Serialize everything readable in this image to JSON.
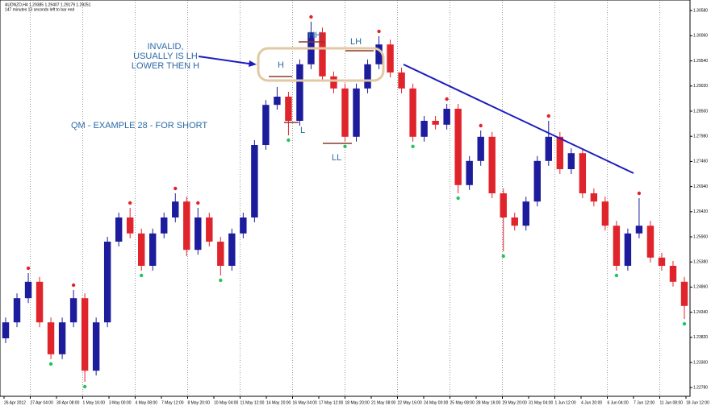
{
  "chart_data": {
    "type": "candlestick",
    "symbol_info": "AUDNZD,H4  1.29385 1.29407 1.29179 1.29251",
    "timer_info": "147 minutes 13 seconds left to bar end",
    "title": "QM - EXAMPLE 28 - FOR SHORT",
    "annotations": {
      "note": "INVALID,\nUSUALLY IS LH\nLOWER THEN H",
      "h": "H",
      "hh": "HH",
      "lh": "LH",
      "l": "L",
      "ll": "LL"
    },
    "up_color": "#1c1c9c",
    "down_color": "#e0242b",
    "open": [
      1.238,
      1.2413,
      1.2463,
      1.2497,
      1.2413,
      1.2347,
      1.2413,
      1.2463,
      1.2313,
      1.2413,
      1.258,
      1.263,
      1.2597,
      1.253,
      1.2597,
      1.263,
      1.2663,
      1.2563,
      1.263,
      1.258,
      1.253,
      1.2597,
      1.263,
      1.278,
      1.2863,
      1.288,
      1.283,
      1.2947,
      1.3013,
      1.2922,
      1.2897,
      1.2797,
      1.2897,
      1.2947,
      1.2988,
      1.293,
      1.2897,
      1.2797,
      1.283,
      1.2822,
      1.2855,
      1.2697,
      1.2747,
      1.2797,
      1.268,
      1.263,
      1.2613,
      1.2663,
      1.2747,
      1.2797,
      1.273,
      1.2763,
      1.268,
      1.2663,
      1.2613,
      1.253,
      1.2597,
      1.2613,
      1.2547,
      1.253,
      1.2497
    ],
    "high": [
      1.2423,
      1.2473,
      1.2515,
      1.2507,
      1.2423,
      1.2423,
      1.248,
      1.2473,
      1.2423,
      1.259,
      1.264,
      1.265,
      1.2607,
      1.2607,
      1.264,
      1.268,
      1.2673,
      1.265,
      1.264,
      1.259,
      1.2607,
      1.264,
      1.279,
      1.2873,
      1.29,
      1.289,
      1.2957,
      1.3035,
      1.3023,
      1.2932,
      1.2907,
      1.2907,
      1.2957,
      1.3005,
      1.2998,
      1.294,
      1.2907,
      1.284,
      1.284,
      1.2865,
      1.2865,
      1.2757,
      1.281,
      1.2807,
      1.269,
      1.264,
      1.2673,
      1.2757,
      1.283,
      1.2807,
      1.2773,
      1.2773,
      1.269,
      1.2673,
      1.2623,
      1.2607,
      1.267,
      1.2623,
      1.2557,
      1.254,
      1.2507
    ],
    "low": [
      1.237,
      1.2403,
      1.2453,
      1.2403,
      1.2337,
      1.2337,
      1.2403,
      1.229,
      1.2303,
      1.2403,
      1.257,
      1.2587,
      1.252,
      1.252,
      1.2587,
      1.262,
      1.255,
      1.2553,
      1.257,
      1.251,
      1.252,
      1.2587,
      1.262,
      1.277,
      1.2853,
      1.28,
      1.282,
      1.2937,
      1.2912,
      1.2887,
      1.2787,
      1.2787,
      1.2887,
      1.2937,
      1.292,
      1.2887,
      1.2787,
      1.2787,
      1.2812,
      1.2812,
      1.268,
      1.2687,
      1.2737,
      1.267,
      1.256,
      1.2603,
      1.2603,
      1.2653,
      1.2737,
      1.272,
      1.272,
      1.267,
      1.2653,
      1.2603,
      1.252,
      1.252,
      1.2587,
      1.2537,
      1.252,
      1.2487,
      1.242
    ],
    "close": [
      1.2413,
      1.2463,
      1.2497,
      1.2413,
      1.2347,
      1.2413,
      1.2463,
      1.2313,
      1.2413,
      1.258,
      1.263,
      1.2597,
      1.253,
      1.2597,
      1.263,
      1.2663,
      1.2563,
      1.263,
      1.258,
      1.253,
      1.2597,
      1.263,
      1.278,
      1.2863,
      1.288,
      1.283,
      1.2947,
      1.3013,
      1.2922,
      1.2897,
      1.2797,
      1.2897,
      1.2947,
      1.2988,
      1.293,
      1.2897,
      1.2797,
      1.283,
      1.2822,
      1.2855,
      1.2697,
      1.2747,
      1.2797,
      1.268,
      1.263,
      1.2613,
      1.2663,
      1.2747,
      1.2797,
      1.273,
      1.2763,
      1.268,
      1.2663,
      1.2613,
      1.253,
      1.2597,
      1.2613,
      1.2547,
      1.253,
      1.2497,
      1.2447
    ],
    "up_fractals": [
      2,
      6,
      11,
      15,
      17,
      27,
      33,
      39,
      42,
      48,
      56
    ],
    "down_fractals": [
      4,
      7,
      12,
      19,
      25,
      30,
      36,
      40,
      44,
      54,
      60
    ],
    "ylim": [
      1.226,
      1.308
    ],
    "yticks": [
      {
        "value": 1.3058,
        "label": "1.30580"
      },
      {
        "value": 1.3006,
        "label": "1.30060"
      },
      {
        "value": 1.2954,
        "label": "1.29540"
      },
      {
        "value": 1.2902,
        "label": "1.29020"
      },
      {
        "value": 1.285,
        "label": "1.28500"
      },
      {
        "value": 1.2798,
        "label": "1.27980"
      },
      {
        "value": 1.2746,
        "label": "1.27460"
      },
      {
        "value": 1.2694,
        "label": "1.26940"
      },
      {
        "value": 1.2642,
        "label": "1.26420"
      },
      {
        "value": 1.259,
        "label": "1.25900"
      },
      {
        "value": 1.2538,
        "label": "1.25380"
      },
      {
        "value": 1.2486,
        "label": "1.24860"
      },
      {
        "value": 1.2434,
        "label": "1.24340"
      },
      {
        "value": 1.2382,
        "label": "1.23820"
      },
      {
        "value": 1.233,
        "label": "1.23300"
      },
      {
        "value": 1.2278,
        "label": "1.22780"
      }
    ],
    "xtick_labels": [
      "26 Apr 2012",
      "27 Apr 04:00",
      "30 Apr 08:00",
      "1 May 16:00",
      "3 May 00:00",
      "4 May 08:00",
      "7 May 12:00",
      "8 May 20:00",
      "10 May 04:00",
      "11 May 12:00",
      "14 May 20:00",
      "16 May 04:00",
      "17 May 12:00",
      "18 May 20:00",
      "21 May 08:00",
      "22 May 16:00",
      "24 May 00:00",
      "25 May 08:00",
      "28 May 16:00",
      "29 May 20:00",
      "31 May 04:00",
      "1 Jun 12:00",
      "4 Jun 20:00",
      "6 Jun 04:00",
      "7 Jun 12:00",
      "11 Jun 08:00",
      "18 Jun 12:00"
    ]
  }
}
